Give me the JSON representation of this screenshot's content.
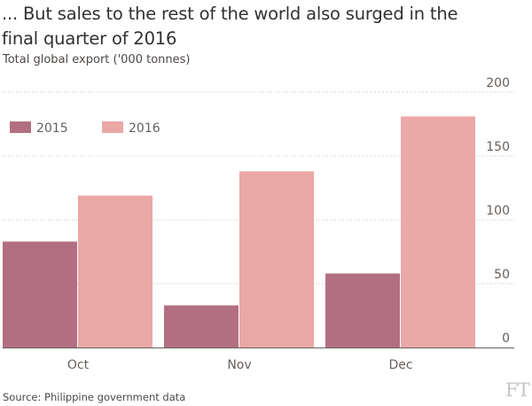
{
  "header": {
    "title": "... But sales to the rest of the world also surged in the final quarter of 2016",
    "subtitle": "Total global export ('000 tonnes)"
  },
  "footer": {
    "source": "Source: Philippine government data",
    "logo": "FT"
  },
  "chart_data": {
    "type": "bar",
    "categories": [
      "Oct",
      "Nov",
      "Dec"
    ],
    "series": [
      {
        "name": "2015",
        "values": [
          83,
          33,
          58
        ],
        "color": "#b36f82"
      },
      {
        "name": "2016",
        "values": [
          119,
          138,
          181
        ],
        "color": "#eaa8a7"
      }
    ],
    "ylim": [
      0,
      200
    ],
    "yticks": [
      0,
      50,
      100,
      150,
      200
    ],
    "ytick_labels": [
      "0",
      "50",
      "100",
      "150",
      "200"
    ],
    "xlabel": "",
    "ylabel": "",
    "grid": true,
    "y_axis_side": "right",
    "legend_position": "top-left"
  }
}
